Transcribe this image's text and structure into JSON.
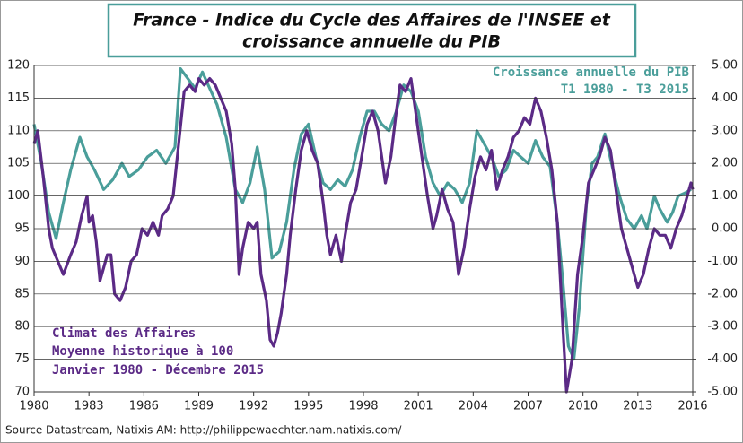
{
  "chart_data": {
    "type": "line",
    "title": [
      "France - Indice du Cycle des Affaires de l'INSEE et",
      "croissance annuelle du PIB"
    ],
    "source": "Source Datastream, Natixis AM: http://philippewaechter.nam.natixis.com/",
    "annotations": [
      "Moyenne historique à 100",
      "Janvier 1980 - Décembre 2015",
      "T1 1980 - T3 2015"
    ],
    "xlim": [
      1980,
      2016
    ],
    "xticks": [
      1980,
      1983,
      1986,
      1989,
      1992,
      1995,
      1998,
      2001,
      2004,
      2007,
      2010,
      2013,
      2016
    ],
    "ylim": [
      70,
      120
    ],
    "yticks": [
      70,
      75,
      80,
      85,
      90,
      95,
      100,
      105,
      110,
      115,
      120
    ],
    "y2lim": [
      -5,
      5
    ],
    "y2ticks": [
      {
        "value": -5,
        "label": "-5.00"
      },
      {
        "value": -4,
        "label": "-4.00"
      },
      {
        "value": -3,
        "label": "-3.00"
      },
      {
        "value": -2,
        "label": "-2.00"
      },
      {
        "value": -1,
        "label": "-1.00"
      },
      {
        "value": 0,
        "label": "0.00"
      },
      {
        "value": 1,
        "label": "1.00"
      },
      {
        "value": 2,
        "label": "2.00"
      },
      {
        "value": 3,
        "label": "3.00"
      },
      {
        "value": 4,
        "label": "4.00"
      },
      {
        "value": 5,
        "label": "5.00"
      }
    ],
    "grid": true,
    "series": [
      {
        "name": "Climat des Affaires",
        "color": "#5b2a86",
        "x": [
          1980.0,
          1980.2,
          1980.5,
          1980.8,
          1981.0,
          1981.3,
          1981.6,
          1982.0,
          1982.3,
          1982.6,
          1982.9,
          1983.0,
          1983.2,
          1983.4,
          1983.6,
          1983.8,
          1984.0,
          1984.2,
          1984.4,
          1984.7,
          1985.0,
          1985.3,
          1985.6,
          1985.9,
          1986.2,
          1986.5,
          1986.8,
          1987.0,
          1987.3,
          1987.6,
          1987.9,
          1988.2,
          1988.5,
          1988.8,
          1989.0,
          1989.3,
          1989.6,
          1989.9,
          1990.2,
          1990.5,
          1990.8,
          1991.0,
          1991.2,
          1991.4,
          1991.7,
          1992.0,
          1992.2,
          1992.4,
          1992.7,
          1992.9,
          1993.1,
          1993.3,
          1993.5,
          1993.8,
          1994.0,
          1994.3,
          1994.6,
          1994.9,
          1995.2,
          1995.5,
          1995.8,
          1996.0,
          1996.2,
          1996.5,
          1996.8,
          1997.0,
          1997.3,
          1997.6,
          1997.9,
          1998.2,
          1998.5,
          1998.8,
          1999.0,
          1999.2,
          1999.5,
          1999.8,
          2000.0,
          2000.3,
          2000.6,
          2000.9,
          2001.2,
          2001.5,
          2001.8,
          2002.0,
          2002.3,
          2002.6,
          2002.9,
          2003.2,
          2003.5,
          2003.8,
          2004.1,
          2004.4,
          2004.7,
          2005.0,
          2005.3,
          2005.6,
          2005.9,
          2006.2,
          2006.5,
          2006.8,
          2007.1,
          2007.4,
          2007.7,
          2008.0,
          2008.3,
          2008.6,
          2008.9,
          2009.1,
          2009.4,
          2009.7,
          2010.0,
          2010.3,
          2010.6,
          2010.9,
          2011.2,
          2011.5,
          2011.8,
          2012.1,
          2012.4,
          2012.7,
          2013.0,
          2013.3,
          2013.6,
          2013.9,
          2014.2,
          2014.5,
          2014.8,
          2015.1,
          2015.4,
          2015.7,
          2015.9,
          2016.0
        ],
        "values": [
          108,
          110,
          103,
          95,
          92,
          90,
          88,
          91,
          93,
          97,
          100,
          96,
          97,
          93,
          87,
          89,
          91,
          91,
          85,
          84,
          86,
          90,
          91,
          95,
          94,
          96,
          94,
          97,
          98,
          100,
          108,
          116,
          117,
          116,
          118,
          117,
          118,
          117,
          115,
          113,
          108,
          101,
          88,
          92,
          96,
          95,
          96,
          88,
          84,
          78,
          77,
          79,
          82,
          88,
          94,
          101,
          107,
          110,
          107,
          105,
          99,
          94,
          91,
          94,
          90,
          94,
          99,
          101,
          106,
          111,
          113,
          110,
          106,
          102,
          106,
          113,
          117,
          116,
          118,
          112,
          106,
          100,
          95,
          97,
          101,
          98,
          96,
          88,
          92,
          98,
          103,
          106,
          104,
          107,
          101,
          104,
          106,
          109,
          110,
          112,
          111,
          115,
          113,
          109,
          104,
          96,
          80,
          70,
          75,
          88,
          94,
          102,
          104,
          106,
          109,
          107,
          101,
          95,
          92,
          89,
          86,
          88,
          92,
          95,
          94,
          94,
          92,
          95,
          97,
          100,
          102,
          101
        ]
      },
      {
        "name": "Croissance annuelle du PIB",
        "color": "#4a9e9a",
        "axis": "y2",
        "x": [
          1980.0,
          1980.4,
          1980.8,
          1981.2,
          1981.6,
          1982.0,
          1982.5,
          1982.9,
          1983.3,
          1983.8,
          1984.3,
          1984.8,
          1985.2,
          1985.7,
          1986.2,
          1986.7,
          1987.2,
          1987.7,
          1988.0,
          1988.4,
          1988.8,
          1989.2,
          1989.6,
          1990.0,
          1990.5,
          1991.0,
          1991.4,
          1991.8,
          1992.2,
          1992.6,
          1993.0,
          1993.4,
          1993.8,
          1994.2,
          1994.6,
          1995.0,
          1995.4,
          1995.8,
          1996.2,
          1996.6,
          1997.0,
          1997.4,
          1997.8,
          1998.2,
          1998.6,
          1999.0,
          1999.4,
          1999.8,
          2000.2,
          2000.6,
          2001.0,
          2001.4,
          2001.8,
          2002.2,
          2002.6,
          2003.0,
          2003.4,
          2003.8,
          2004.2,
          2004.6,
          2005.0,
          2005.4,
          2005.8,
          2006.2,
          2006.6,
          2007.0,
          2007.4,
          2007.8,
          2008.2,
          2008.6,
          2008.9,
          2009.2,
          2009.5,
          2009.8,
          2010.2,
          2010.5,
          2010.8,
          2011.2,
          2011.6,
          2012.0,
          2012.4,
          2012.8,
          2013.2,
          2013.5,
          2013.9,
          2014.2,
          2014.6,
          2014.9,
          2015.2,
          2015.6,
          2015.9
        ],
        "values": [
          3.2,
          2.0,
          0.5,
          -0.3,
          0.8,
          1.8,
          2.8,
          2.2,
          1.8,
          1.2,
          1.5,
          2.0,
          1.6,
          1.8,
          2.2,
          2.4,
          2.0,
          2.5,
          4.9,
          4.6,
          4.3,
          4.8,
          4.3,
          3.8,
          2.8,
          1.2,
          0.8,
          1.4,
          2.5,
          1.2,
          -0.9,
          -0.7,
          0.2,
          1.8,
          2.9,
          3.2,
          2.2,
          1.4,
          1.2,
          1.5,
          1.3,
          1.8,
          2.8,
          3.6,
          3.6,
          3.2,
          3.0,
          3.6,
          4.4,
          4.2,
          3.6,
          2.2,
          1.4,
          1.0,
          1.4,
          1.2,
          0.8,
          1.4,
          3.0,
          2.6,
          2.2,
          1.6,
          1.8,
          2.4,
          2.2,
          2.0,
          2.7,
          2.2,
          1.9,
          0.2,
          -1.6,
          -3.6,
          -4.0,
          -2.4,
          0.8,
          2.0,
          2.2,
          2.9,
          1.9,
          1.0,
          0.3,
          0.0,
          0.4,
          0.0,
          1.0,
          0.6,
          0.2,
          0.5,
          1.0,
          1.1,
          1.2
        ]
      }
    ]
  }
}
